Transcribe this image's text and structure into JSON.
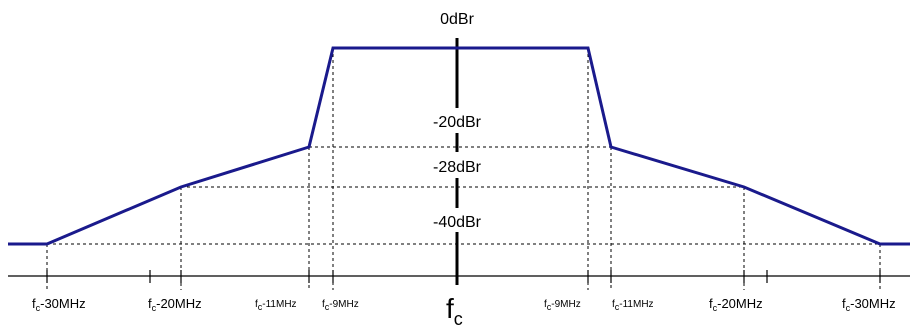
{
  "title": "",
  "level_labels": {
    "top": "0dBr",
    "l20": "-20dBr",
    "l28": "-28dBr",
    "l40": "-40dBr"
  },
  "freq_labels": {
    "n30": {
      "base": "f",
      "sub": "c",
      "rest": "-30MHz"
    },
    "n20": {
      "base": "f",
      "sub": "c",
      "rest": "-20MHz"
    },
    "n11": {
      "base": "f",
      "sub": "c",
      "rest": "-11MHz"
    },
    "n9": {
      "base": "f",
      "sub": "c",
      "rest": "-9MHz"
    },
    "p9": {
      "base": "f",
      "sub": "c",
      "rest": "-9MHz"
    },
    "p11": {
      "base": "f",
      "sub": "c",
      "rest": "-11MHz"
    },
    "p20": {
      "base": "f",
      "sub": "c",
      "rest": "-20MHz"
    },
    "p30": {
      "base": "f",
      "sub": "c",
      "rest": "-30MHz"
    }
  },
  "center_label": {
    "base": "f",
    "sub": "c"
  },
  "mask_color": "#1a1a8c"
}
